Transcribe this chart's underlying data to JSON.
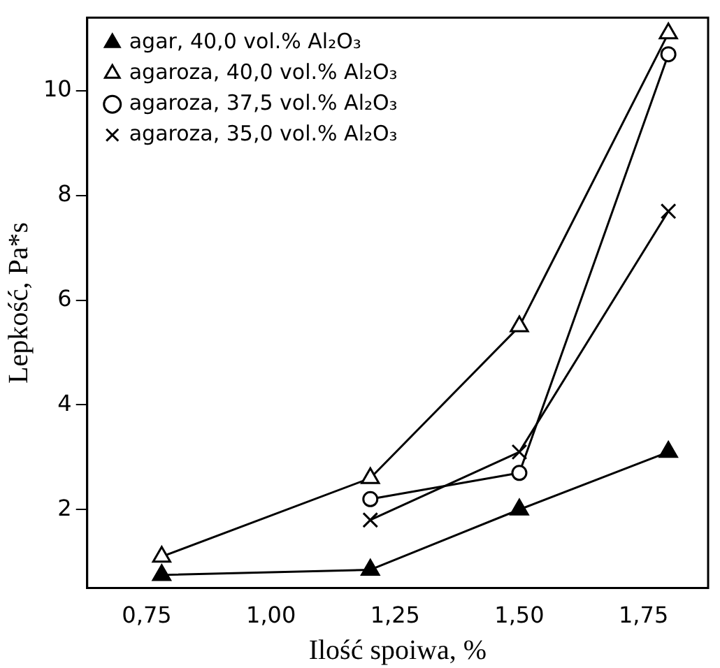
{
  "chart_data": {
    "type": "line",
    "xlabel": "Ilość spoiwa, %",
    "ylabel": "Lepkość, Pa*s",
    "x": [
      0.78,
      1.2,
      1.5,
      1.8
    ],
    "series": [
      {
        "name": "agar, 40,0 vol.% Al₂O₃",
        "color": "#000000",
        "marker": "triangle-filled",
        "values": [
          0.75,
          0.85,
          2.0,
          3.1
        ]
      },
      {
        "name": "agaroza, 40,0 vol.% Al₂O₃",
        "color": "#000000",
        "marker": "triangle",
        "values": [
          1.1,
          2.6,
          5.5,
          11.1
        ]
      },
      {
        "name": "agaroza, 37,5 vol.% Al₂O₃",
        "color": "#000000",
        "marker": "circle",
        "values": [
          null,
          2.2,
          2.7,
          10.7
        ]
      },
      {
        "name": "agaroza, 35,0 vol.% Al₂O₃",
        "color": "#000000",
        "marker": "cross",
        "values": [
          null,
          1.8,
          3.1,
          7.7
        ]
      }
    ],
    "xlim": [
      0.63,
      1.88
    ],
    "ylim": [
      0.5,
      11.4
    ],
    "xticks": [
      {
        "value": 0.75,
        "label": "0,75"
      },
      {
        "value": 1.0,
        "label": "1,00"
      },
      {
        "value": 1.25,
        "label": "1,25"
      },
      {
        "value": 1.5,
        "label": "1,50"
      },
      {
        "value": 1.75,
        "label": "1,75"
      }
    ],
    "yticks": [
      2,
      4,
      6,
      8,
      10
    ],
    "grid": false,
    "legend": "top left",
    "line_style": "solid"
  }
}
